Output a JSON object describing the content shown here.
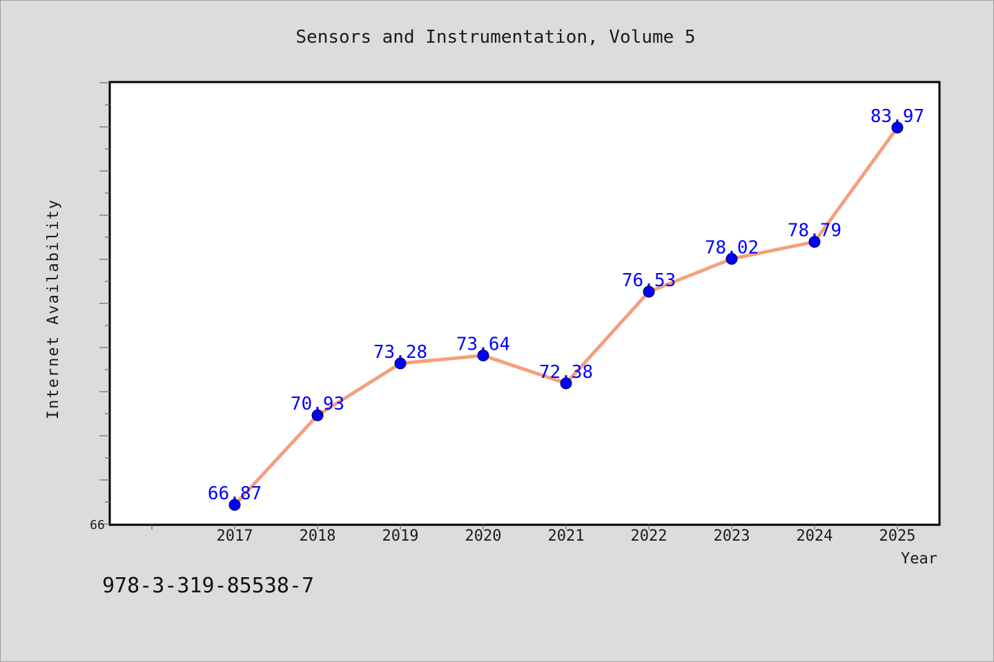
{
  "footer": {
    "isbn": "978-3-319-85538-7"
  },
  "colors": {
    "line": "#f4a07e",
    "marker": "#0000ff",
    "label": "#0000ff",
    "background": "#dcdcdc",
    "plot_bg": "#ffffff"
  },
  "chart_data": {
    "type": "line",
    "title": "Sensors and Instrumentation, Volume 5",
    "xlabel": "Year",
    "ylabel": "Internet Availability",
    "categories": [
      "2017",
      "2018",
      "2019",
      "2020",
      "2021",
      "2022",
      "2023",
      "2024",
      "2025"
    ],
    "series": [
      {
        "values": [
          66.87,
          70.93,
          73.28,
          73.64,
          72.38,
          76.53,
          78.02,
          78.79,
          83.97
        ]
      }
    ],
    "data_labels": [
      "66.87",
      "70.93",
      "73.28",
      "73.64",
      "72.38",
      "76.53",
      "78.02",
      "78.79",
      "83.97"
    ],
    "ytick_labels": [
      "66"
    ],
    "ylim": [
      66,
      86
    ],
    "grid": false,
    "legend": "none"
  }
}
